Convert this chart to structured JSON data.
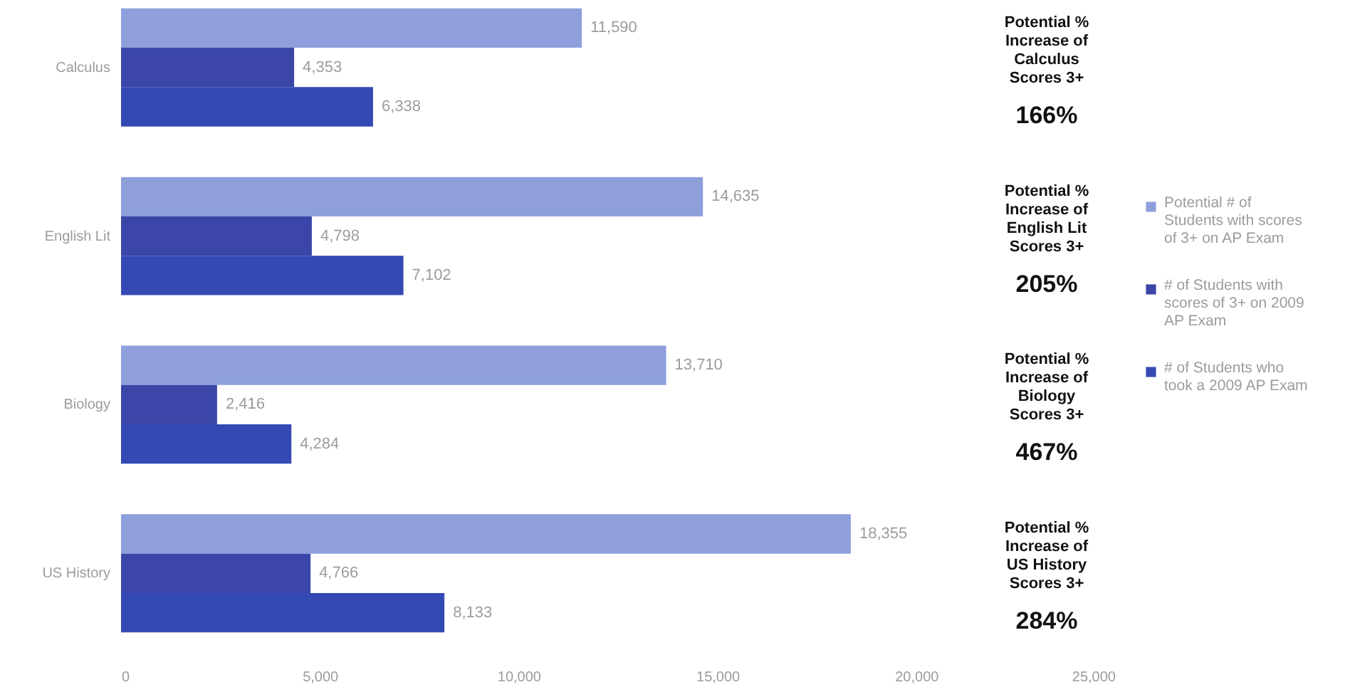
{
  "chart_data": {
    "type": "bar",
    "orientation": "horizontal",
    "categories": [
      "Calculus",
      "English Lit",
      "Biology",
      "US History"
    ],
    "series": [
      {
        "name": "Potential # of Students with scores of 3+ on AP Exam",
        "color": "#8e9fdc",
        "values": [
          11590,
          14635,
          13710,
          18355
        ],
        "value_labels": [
          "11,590",
          "14,635",
          "13,710",
          "18,355"
        ]
      },
      {
        "name": "# of Students with scores of 3+ on 2009 AP Exam",
        "color": "#3b46a8",
        "values": [
          4353,
          4798,
          2416,
          4766
        ],
        "value_labels": [
          "4,353",
          "4,798",
          "2,416",
          "4,766"
        ]
      },
      {
        "name": "# of Students who took a 2009 AP Exam",
        "color": "#3349b4",
        "values": [
          6338,
          7102,
          4284,
          8133
        ],
        "value_labels": [
          "6,338",
          "7,102",
          "4,284",
          "8,133"
        ]
      }
    ],
    "xlim": [
      0,
      25000
    ],
    "xticks": [
      0,
      {
        "value": 5000,
        "label": "5,000"
      },
      {
        "value": 10000,
        "label": "10,000"
      },
      {
        "value": 15000,
        "label": "15,000"
      },
      {
        "value": 20000,
        "label": "20,000"
      },
      {
        "value": 25000,
        "label": "25,000"
      }
    ],
    "grid": false,
    "legend": "right",
    "annotations": [
      "Potential %",
      "Increase of",
      "Calculus",
      "Scores 3+",
      "166%",
      "Potential %",
      "Increase of",
      "English Lit",
      "Scores 3+",
      "205%",
      "Potential %",
      "Increase of",
      "Biology",
      "Scores 3+",
      "467%",
      "Potential %",
      "Increase of",
      "US History",
      "Scores 3+",
      "284%"
    ]
  }
}
